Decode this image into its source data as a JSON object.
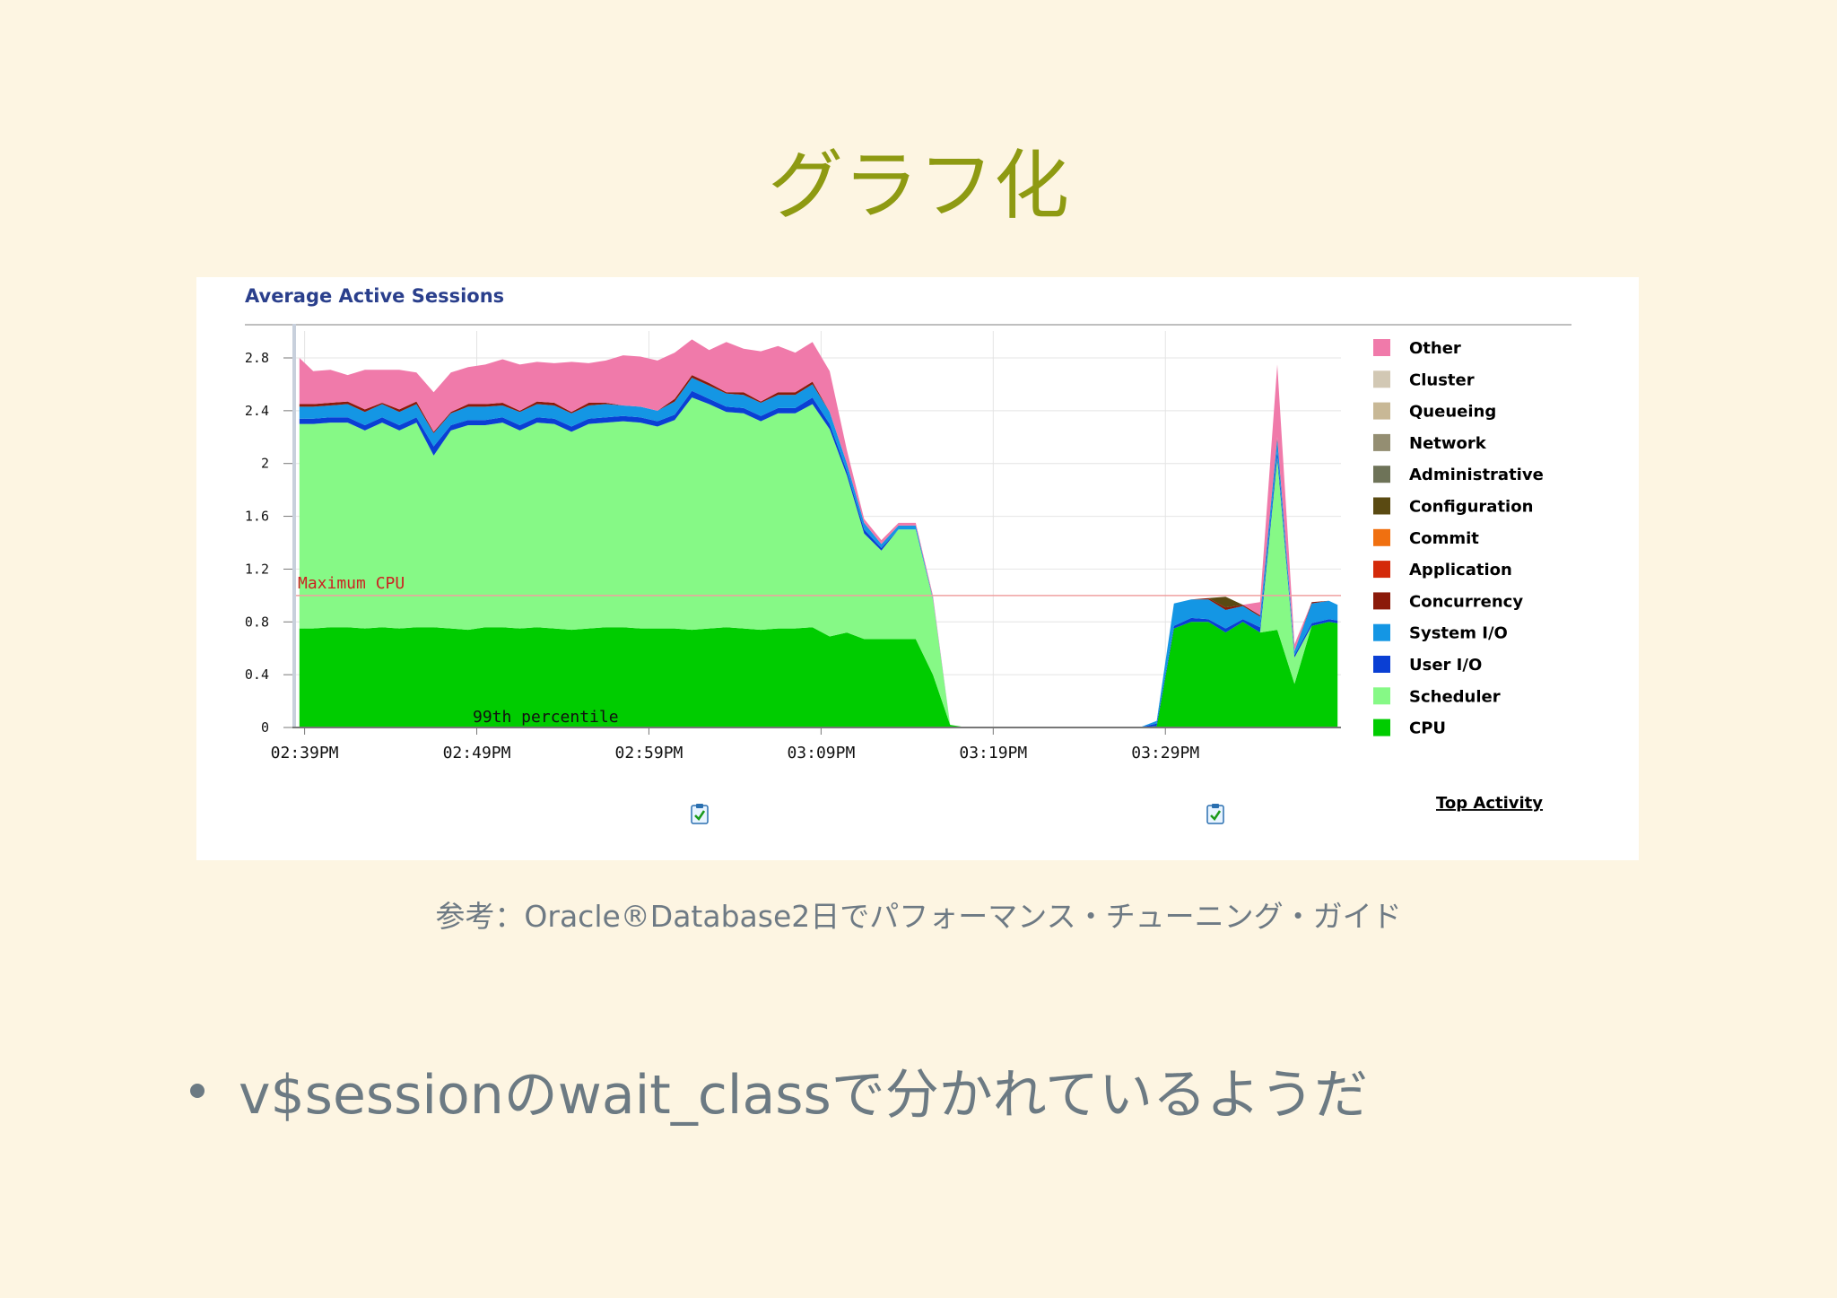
{
  "slide": {
    "title": "グラフ化",
    "caption": "参考：Oracle®Database2日でパフォーマンス・チューニング・ガイド",
    "bullet": "v$sessionのwait_classで分かれているようだ"
  },
  "chart_data": {
    "type": "area",
    "stacked": true,
    "title": "Average Active Sessions",
    "xlabel": "",
    "ylabel": "",
    "ylim": [
      0,
      3.0
    ],
    "yticks": [
      0,
      0.4,
      0.8,
      1.2,
      1.6,
      2,
      2.4,
      2.8
    ],
    "ytick_labels": [
      "0",
      "0.4",
      "0.8",
      "1.2",
      "1.6",
      "2",
      "2.4",
      "2.8"
    ],
    "x_tick_labels": [
      "02:39PM",
      "02:49PM",
      "02:59PM",
      "03:09PM",
      "03:19PM",
      "03:29PM"
    ],
    "x_tick_minutes": [
      0,
      10,
      20,
      30,
      40,
      50
    ],
    "xlim_minutes": [
      -0.5,
      60.2
    ],
    "grid": true,
    "legend_position": "right",
    "annotations": {
      "max_cpu_label": "Maximum CPU",
      "max_cpu_value": 1.0,
      "percentile_label": "99th percentile"
    },
    "link_label": "Top Activity",
    "x_minutes": [
      -0.3,
      0.5,
      1.5,
      2.5,
      3.5,
      4.5,
      5.5,
      6.5,
      7.5,
      8.5,
      9.5,
      10.5,
      11.5,
      12.5,
      13.5,
      14.5,
      15.5,
      16.5,
      17.5,
      18.5,
      19.5,
      20.5,
      21.5,
      22.5,
      23.5,
      24.5,
      25.5,
      26.5,
      27.5,
      28.5,
      29.5,
      30.5,
      31.5,
      32.5,
      33.5,
      34.5,
      35.5,
      36.5,
      37.5,
      38.5,
      39.5,
      40.5,
      41.5,
      42.5,
      43.5,
      44.5,
      45.5,
      46.5,
      47.5,
      48.5,
      49.5,
      50.5,
      51.5,
      52.5,
      53.5,
      54.5,
      55.5,
      56.5,
      57.5,
      58.5,
      59.5,
      60.0
    ],
    "series": [
      {
        "name": "CPU",
        "color": "#00cc00",
        "values": [
          0.75,
          0.75,
          0.76,
          0.76,
          0.75,
          0.76,
          0.75,
          0.76,
          0.76,
          0.75,
          0.74,
          0.76,
          0.76,
          0.75,
          0.76,
          0.75,
          0.74,
          0.75,
          0.76,
          0.76,
          0.75,
          0.75,
          0.75,
          0.74,
          0.75,
          0.76,
          0.75,
          0.74,
          0.75,
          0.75,
          0.76,
          0.69,
          0.72,
          0.67,
          0.67,
          0.67,
          0.67,
          0.4,
          0.02,
          0.0,
          0.0,
          0.0,
          0.0,
          0.0,
          0.0,
          0.0,
          0.0,
          0.0,
          0.0,
          0.0,
          0.01,
          0.75,
          0.8,
          0.8,
          0.72,
          0.8,
          0.72,
          0.74,
          0.33,
          0.77,
          0.8,
          0.79
        ]
      },
      {
        "name": "Scheduler",
        "color": "#86f986",
        "values": [
          1.55,
          1.55,
          1.55,
          1.55,
          1.5,
          1.55,
          1.5,
          1.55,
          1.3,
          1.5,
          1.55,
          1.53,
          1.55,
          1.5,
          1.55,
          1.55,
          1.5,
          1.55,
          1.55,
          1.56,
          1.56,
          1.53,
          1.58,
          1.76,
          1.7,
          1.63,
          1.63,
          1.58,
          1.63,
          1.63,
          1.69,
          1.57,
          1.19,
          0.8,
          0.67,
          0.83,
          0.83,
          0.57,
          0.0,
          0.0,
          0.0,
          0.0,
          0.0,
          0.0,
          0.0,
          0.0,
          0.0,
          0.0,
          0.0,
          0.0,
          0.0,
          0.0,
          0.0,
          0.0,
          0.0,
          0.0,
          0.0,
          1.3,
          0.2,
          0.0,
          0.0,
          0.0
        ]
      },
      {
        "name": "User I/O",
        "color": "#0a3fd4",
        "values": [
          0.04,
          0.04,
          0.04,
          0.04,
          0.04,
          0.04,
          0.04,
          0.04,
          0.07,
          0.04,
          0.04,
          0.04,
          0.04,
          0.04,
          0.04,
          0.04,
          0.04,
          0.04,
          0.04,
          0.04,
          0.04,
          0.04,
          0.04,
          0.05,
          0.04,
          0.04,
          0.04,
          0.04,
          0.04,
          0.04,
          0.05,
          0.04,
          0.03,
          0.03,
          0.02,
          0.0,
          0.0,
          0.0,
          0.0,
          0.0,
          0.0,
          0.0,
          0.0,
          0.0,
          0.0,
          0.0,
          0.0,
          0.0,
          0.0,
          0.0,
          0.02,
          0.02,
          0.03,
          0.02,
          0.03,
          0.02,
          0.04,
          0.05,
          0.02,
          0.02,
          0.02,
          0.02
        ]
      },
      {
        "name": "System I/O",
        "color": "#1496e4",
        "values": [
          0.09,
          0.09,
          0.09,
          0.1,
          0.1,
          0.1,
          0.1,
          0.1,
          0.1,
          0.09,
          0.1,
          0.1,
          0.09,
          0.1,
          0.1,
          0.1,
          0.1,
          0.1,
          0.1,
          0.08,
          0.08,
          0.08,
          0.1,
          0.1,
          0.1,
          0.1,
          0.1,
          0.1,
          0.1,
          0.1,
          0.1,
          0.09,
          0.06,
          0.05,
          0.03,
          0.03,
          0.03,
          0.01,
          0.0,
          0.0,
          0.0,
          0.0,
          0.0,
          0.0,
          0.0,
          0.0,
          0.0,
          0.0,
          0.0,
          0.0,
          0.02,
          0.17,
          0.14,
          0.15,
          0.14,
          0.1,
          0.08,
          0.1,
          0.03,
          0.15,
          0.14,
          0.12
        ]
      },
      {
        "name": "Concurrency",
        "color": "#8b1a0a",
        "values": [
          0.02,
          0.02,
          0.02,
          0.02,
          0.02,
          0.01,
          0.02,
          0.02,
          0.01,
          0.01,
          0.02,
          0.02,
          0.02,
          0.01,
          0.02,
          0.02,
          0.01,
          0.02,
          0.01,
          0.0,
          0.0,
          0.0,
          0.02,
          0.02,
          0.02,
          0.01,
          0.02,
          0.01,
          0.02,
          0.02,
          0.02,
          0.0,
          0.0,
          0.0,
          0.0,
          0.0,
          0.0,
          0.0,
          0.0,
          0.0,
          0.0,
          0.0,
          0.0,
          0.0,
          0.0,
          0.0,
          0.0,
          0.0,
          0.0,
          0.0,
          0.0,
          0.0,
          0.0,
          0.01,
          0.02,
          0.01,
          0.01,
          0.01,
          0.0,
          0.01,
          0.0,
          0.0
        ]
      },
      {
        "name": "Application",
        "color": "#d42a0a",
        "values": [
          0.0,
          0.0,
          0.0,
          0.0,
          0.0,
          0.0,
          0.0,
          0.0,
          0.0,
          0.0,
          0.0,
          0.0,
          0.0,
          0.0,
          0.0,
          0.0,
          0.0,
          0.0,
          0.0,
          0.0,
          0.0,
          0.0,
          0.0,
          0.0,
          0.0,
          0.0,
          0.0,
          0.0,
          0.0,
          0.0,
          0.0,
          0.0,
          0.0,
          0.0,
          0.0,
          0.0,
          0.0,
          0.0,
          0.0,
          0.0,
          0.0,
          0.0,
          0.0,
          0.0,
          0.0,
          0.0,
          0.0,
          0.0,
          0.0,
          0.0,
          0.0,
          0.0,
          0.0,
          0.0,
          0.0,
          0.0,
          0.0,
          0.0,
          0.0,
          0.0,
          0.0,
          0.0
        ]
      },
      {
        "name": "Commit",
        "color": "#f07010",
        "values": [
          0.0,
          0.0,
          0.0,
          0.0,
          0.0,
          0.0,
          0.0,
          0.0,
          0.0,
          0.0,
          0.0,
          0.0,
          0.0,
          0.0,
          0.0,
          0.0,
          0.0,
          0.0,
          0.0,
          0.0,
          0.0,
          0.0,
          0.0,
          0.0,
          0.0,
          0.0,
          0.0,
          0.0,
          0.0,
          0.0,
          0.0,
          0.0,
          0.0,
          0.0,
          0.0,
          0.0,
          0.0,
          0.0,
          0.0,
          0.0,
          0.0,
          0.0,
          0.0,
          0.0,
          0.0,
          0.0,
          0.0,
          0.0,
          0.0,
          0.0,
          0.0,
          0.0,
          0.0,
          0.0,
          0.0,
          0.0,
          0.0,
          0.0,
          0.0,
          0.0,
          0.0,
          0.0
        ]
      },
      {
        "name": "Configuration",
        "color": "#5a4a12",
        "values": [
          0.0,
          0.0,
          0.0,
          0.0,
          0.0,
          0.0,
          0.0,
          0.0,
          0.0,
          0.0,
          0.0,
          0.0,
          0.0,
          0.0,
          0.0,
          0.0,
          0.0,
          0.0,
          0.0,
          0.0,
          0.0,
          0.0,
          0.0,
          0.0,
          0.0,
          0.0,
          0.0,
          0.0,
          0.0,
          0.0,
          0.0,
          0.0,
          0.0,
          0.0,
          0.0,
          0.0,
          0.0,
          0.0,
          0.0,
          0.0,
          0.0,
          0.0,
          0.0,
          0.0,
          0.0,
          0.0,
          0.0,
          0.0,
          0.0,
          0.0,
          0.0,
          0.0,
          0.0,
          0.0,
          0.08,
          0.0,
          0.0,
          0.0,
          0.0,
          0.0,
          0.0,
          0.0
        ]
      },
      {
        "name": "Administrative",
        "color": "#6e7358",
        "values": [
          0.0,
          0.0,
          0.0,
          0.0,
          0.0,
          0.0,
          0.0,
          0.0,
          0.0,
          0.0,
          0.0,
          0.0,
          0.0,
          0.0,
          0.0,
          0.0,
          0.0,
          0.0,
          0.0,
          0.0,
          0.0,
          0.0,
          0.0,
          0.0,
          0.0,
          0.0,
          0.0,
          0.0,
          0.0,
          0.0,
          0.0,
          0.0,
          0.0,
          0.0,
          0.0,
          0.0,
          0.0,
          0.0,
          0.0,
          0.0,
          0.0,
          0.0,
          0.0,
          0.0,
          0.0,
          0.0,
          0.0,
          0.0,
          0.0,
          0.0,
          0.0,
          0.0,
          0.0,
          0.0,
          0.0,
          0.0,
          0.0,
          0.0,
          0.0,
          0.0,
          0.0,
          0.0
        ]
      },
      {
        "name": "Network",
        "color": "#948e72",
        "values": [
          0.0,
          0.0,
          0.0,
          0.0,
          0.0,
          0.0,
          0.0,
          0.0,
          0.0,
          0.0,
          0.0,
          0.0,
          0.0,
          0.0,
          0.0,
          0.0,
          0.0,
          0.0,
          0.0,
          0.0,
          0.0,
          0.0,
          0.0,
          0.0,
          0.0,
          0.0,
          0.0,
          0.0,
          0.0,
          0.0,
          0.0,
          0.0,
          0.0,
          0.0,
          0.0,
          0.0,
          0.0,
          0.0,
          0.0,
          0.0,
          0.0,
          0.0,
          0.0,
          0.0,
          0.0,
          0.0,
          0.0,
          0.0,
          0.0,
          0.0,
          0.0,
          0.0,
          0.0,
          0.0,
          0.0,
          0.0,
          0.0,
          0.0,
          0.0,
          0.0,
          0.0,
          0.0
        ]
      },
      {
        "name": "Queueing",
        "color": "#c8b896",
        "values": [
          0.0,
          0.0,
          0.0,
          0.0,
          0.0,
          0.0,
          0.0,
          0.0,
          0.0,
          0.0,
          0.0,
          0.0,
          0.0,
          0.0,
          0.0,
          0.0,
          0.0,
          0.0,
          0.0,
          0.0,
          0.0,
          0.0,
          0.0,
          0.0,
          0.0,
          0.0,
          0.0,
          0.0,
          0.0,
          0.0,
          0.0,
          0.0,
          0.0,
          0.0,
          0.0,
          0.0,
          0.0,
          0.0,
          0.0,
          0.0,
          0.0,
          0.0,
          0.0,
          0.0,
          0.0,
          0.0,
          0.0,
          0.0,
          0.0,
          0.0,
          0.0,
          0.0,
          0.0,
          0.0,
          0.0,
          0.0,
          0.0,
          0.0,
          0.0,
          0.0,
          0.0,
          0.0
        ]
      },
      {
        "name": "Cluster",
        "color": "#d2c8b4",
        "values": [
          0.0,
          0.0,
          0.0,
          0.0,
          0.0,
          0.0,
          0.0,
          0.0,
          0.0,
          0.0,
          0.0,
          0.0,
          0.0,
          0.0,
          0.0,
          0.0,
          0.0,
          0.0,
          0.0,
          0.0,
          0.0,
          0.0,
          0.0,
          0.0,
          0.0,
          0.0,
          0.0,
          0.0,
          0.0,
          0.0,
          0.0,
          0.0,
          0.0,
          0.0,
          0.0,
          0.0,
          0.0,
          0.0,
          0.0,
          0.0,
          0.0,
          0.0,
          0.0,
          0.0,
          0.0,
          0.0,
          0.0,
          0.0,
          0.0,
          0.0,
          0.0,
          0.0,
          0.0,
          0.0,
          0.0,
          0.0,
          0.0,
          0.0,
          0.0,
          0.0,
          0.0,
          0.0
        ]
      },
      {
        "name": "Other",
        "color": "#f07aaa",
        "values": [
          0.35,
          0.25,
          0.25,
          0.2,
          0.3,
          0.25,
          0.3,
          0.22,
          0.3,
          0.3,
          0.28,
          0.3,
          0.33,
          0.35,
          0.3,
          0.3,
          0.38,
          0.3,
          0.32,
          0.38,
          0.38,
          0.38,
          0.35,
          0.27,
          0.25,
          0.38,
          0.33,
          0.38,
          0.35,
          0.3,
          0.3,
          0.31,
          0.1,
          0.03,
          0.03,
          0.02,
          0.02,
          0.02,
          0.0,
          0.0,
          0.0,
          0.0,
          0.0,
          0.0,
          0.0,
          0.0,
          0.0,
          0.0,
          0.0,
          0.0,
          0.0,
          0.0,
          0.0,
          0.0,
          0.0,
          0.0,
          0.1,
          0.55,
          0.05,
          0.0,
          0.0,
          0.0
        ]
      }
    ],
    "legend_order": [
      "Other",
      "Cluster",
      "Queueing",
      "Network",
      "Administrative",
      "Configuration",
      "Commit",
      "Application",
      "Concurrency",
      "System I/O",
      "User I/O",
      "Scheduler",
      "CPU"
    ],
    "colors": {
      "grid": "#e4e4e4",
      "axis": "#777777",
      "title": "#2a3f8c",
      "max_cpu": "#cc2222",
      "text": "#111111"
    }
  }
}
